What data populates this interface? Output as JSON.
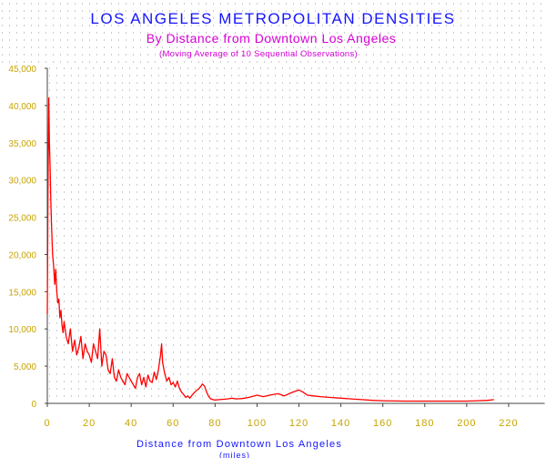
{
  "chart_data": {
    "type": "line",
    "title": "LOS ANGELES METROPOLITAN DENSITIES",
    "subtitle": "By Distance from Downtown Los Angeles",
    "note": "(Moving Average of 10 Sequential Observations)",
    "xlabel": "Distance from Downtown Los Angeles",
    "xunit": "(miles)",
    "ylabel": "",
    "xlim": [
      0,
      230
    ],
    "ylim": [
      0,
      45000
    ],
    "grid": true,
    "legend": "none",
    "x_ticks": [
      "0",
      "20",
      "40",
      "60",
      "80",
      "100",
      "120",
      "140",
      "160",
      "180",
      "200",
      "220"
    ],
    "y_ticks": [
      "0",
      "5,000",
      "10,000",
      "15,000",
      "20,000",
      "25,000",
      "30,000",
      "35,000",
      "40,000",
      "45,000"
    ],
    "colors": {
      "line": "#ff0000",
      "title": "#1515ff",
      "subtitle": "#d600d6",
      "ticks": "#c8a400",
      "grid": "#9a9a9a"
    },
    "series": [
      {
        "x": [
          0,
          0.3,
          0.7,
          1,
          1.3,
          1.7,
          2,
          2.5,
          3,
          3.5,
          4,
          4.5,
          5,
          5.5,
          6,
          6.5,
          7,
          7.5,
          8,
          9,
          10,
          11,
          12,
          13,
          14,
          15,
          16,
          17,
          18,
          19,
          20,
          21,
          22,
          23,
          24,
          25,
          26,
          27,
          28,
          29,
          30,
          31,
          32,
          33,
          34,
          35,
          36,
          37,
          38,
          39,
          40,
          41,
          42,
          43,
          44,
          45,
          46,
          47,
          48,
          49,
          50,
          51,
          52,
          53,
          54,
          54.5,
          55,
          56,
          57,
          58,
          59,
          60,
          61,
          62,
          63,
          64,
          65,
          66,
          67,
          68,
          69,
          70,
          71,
          72,
          73,
          74,
          75,
          76,
          77,
          78,
          79,
          80,
          82,
          84,
          86,
          88,
          90,
          93,
          96,
          100,
          103,
          106,
          110,
          113,
          116,
          118,
          120,
          122,
          124,
          127,
          130,
          135,
          140,
          145,
          150,
          155,
          160,
          170,
          180,
          190,
          200,
          205,
          210,
          213
        ],
        "values": [
          12000,
          28000,
          41000,
          35000,
          32000,
          27000,
          24000,
          20000,
          18500,
          16000,
          18000,
          15000,
          13500,
          14000,
          11500,
          12500,
          10500,
          9500,
          11000,
          9000,
          8000,
          10000,
          7000,
          8500,
          6500,
          7500,
          9000,
          6000,
          8000,
          7000,
          6500,
          5500,
          8000,
          7000,
          6000,
          10000,
          5000,
          7000,
          6500,
          4500,
          4000,
          6000,
          3500,
          3000,
          4500,
          3500,
          3000,
          2500,
          4000,
          3500,
          3000,
          2500,
          2000,
          3500,
          4000,
          2500,
          3500,
          2200,
          3800,
          3000,
          2800,
          4200,
          3200,
          4500,
          6500,
          8000,
          5500,
          4000,
          3000,
          3500,
          2500,
          2800,
          2200,
          3000,
          2000,
          1500,
          1200,
          800,
          1000,
          700,
          1100,
          1400,
          1700,
          1900,
          2200,
          2600,
          2300,
          1500,
          900,
          600,
          500,
          450,
          500,
          550,
          600,
          700,
          600,
          650,
          800,
          1100,
          900,
          1100,
          1300,
          1000,
          1400,
          1600,
          1800,
          1500,
          1100,
          1000,
          900,
          800,
          700,
          600,
          500,
          400,
          350,
          300,
          300,
          300,
          300,
          350,
          400,
          500
        ]
      }
    ]
  }
}
